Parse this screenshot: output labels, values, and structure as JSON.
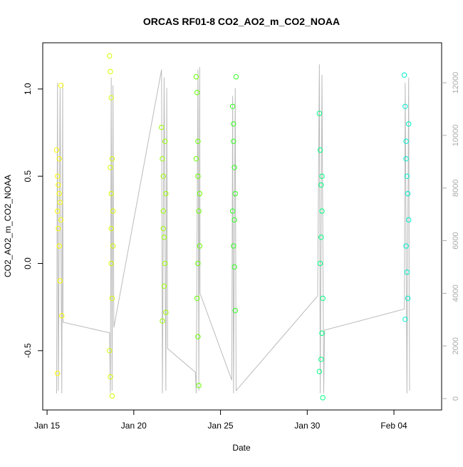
{
  "chart_data": {
    "type": "scatter",
    "title": "ORCAS RF01-8 CO2_AO2_m_CO2_NOAA",
    "x_label": "Date",
    "y_label": "CO2_AO2_m_CO2_NOAA",
    "xlim": [
      14.75,
      37.75
    ],
    "xticks": [
      {
        "value": 15,
        "label": "Jan 15"
      },
      {
        "value": 20,
        "label": "Jan 20"
      },
      {
        "value": 25,
        "label": "Jan 25"
      },
      {
        "value": 30,
        "label": "Jan 30"
      },
      {
        "value": 35,
        "label": "Feb 04"
      }
    ],
    "ylim": [
      -0.84,
      1.265
    ],
    "yticks": [
      -0.5,
      {
        "value": 0,
        "label": "0.0"
      },
      0.5,
      {
        "value": 1,
        "label": "1.0"
      }
    ],
    "y2lim": [
      -433,
      13520
    ],
    "y2ticks": [
      0,
      2000,
      4000,
      6000,
      8000,
      10000,
      12000
    ],
    "series": [
      {
        "color": "#ffff00",
        "x": [
          15.55,
          15.6,
          15.6,
          15.65,
          15.65,
          15.7,
          15.7,
          15.75,
          15.75,
          15.8,
          15.8,
          15.85,
          15.6,
          15.7
        ],
        "values": [
          0.65,
          0.5,
          0.3,
          0.2,
          0.45,
          0.1,
          0.6,
          0.35,
          -0.1,
          0.25,
          1.02,
          -0.3,
          -0.63,
          0.4
        ]
      },
      {
        "color": "#d4ff00",
        "x": [
          18.6,
          18.65,
          18.65,
          18.7,
          18.7,
          18.7,
          18.75,
          18.75,
          18.8,
          18.6,
          18.65,
          18.7,
          18.75,
          18.8
        ],
        "values": [
          1.19,
          1.1,
          0.55,
          0.4,
          0.2,
          0.0,
          -0.2,
          0.6,
          0.3,
          -0.5,
          -0.65,
          0.95,
          -0.76,
          0.1
        ]
      },
      {
        "color": "#99ff00",
        "x": [
          21.6,
          21.65,
          21.7,
          21.7,
          21.75,
          21.8,
          21.85,
          21.65,
          21.75,
          21.8,
          21.7,
          21.85
        ],
        "values": [
          0.78,
          0.6,
          0.5,
          0.3,
          0.15,
          0.0,
          0.4,
          -0.33,
          -0.13,
          0.7,
          0.2,
          -0.28
        ]
      },
      {
        "color": "#66ff00",
        "x": [
          23.6,
          23.65,
          23.7,
          23.7,
          23.75,
          23.8,
          23.65,
          23.7,
          23.75,
          23.6,
          23.7,
          23.8
        ],
        "values": [
          1.07,
          0.98,
          0.7,
          0.5,
          0.3,
          0.1,
          -0.2,
          -0.42,
          -0.7,
          0.6,
          0.0,
          0.4
        ]
      },
      {
        "color": "#33ff22",
        "x": [
          25.7,
          25.75,
          25.8,
          25.85,
          25.8,
          25.75,
          25.9,
          25.8,
          25.85,
          25.75,
          25.7
        ],
        "values": [
          0.9,
          0.7,
          0.55,
          0.4,
          0.25,
          0.1,
          1.07,
          -0.02,
          -0.27,
          0.8,
          0.3
        ]
      },
      {
        "color": "#00ff80",
        "x": [
          30.7,
          30.75,
          30.8,
          30.85,
          30.8,
          30.75,
          30.9,
          30.85,
          30.8,
          30.7,
          30.9,
          30.85
        ],
        "values": [
          0.86,
          0.65,
          0.45,
          0.3,
          0.15,
          0.0,
          -0.2,
          -0.4,
          -0.55,
          -0.62,
          -0.77,
          0.5
        ]
      },
      {
        "color": "#00eecc",
        "x": [
          35.6,
          35.65,
          35.7,
          35.75,
          35.8,
          35.85,
          35.7,
          35.75,
          35.8,
          35.65,
          35.7,
          35.85
        ],
        "values": [
          1.08,
          0.9,
          0.7,
          0.5,
          0.4,
          0.25,
          0.1,
          -0.05,
          -0.2,
          -0.32,
          0.6,
          0.8
        ]
      },
      {
        "type": "line",
        "axis": "y2",
        "color": "#bbbbbb",
        "x": [
          15.55,
          15.6,
          15.65,
          15.75,
          15.85,
          15.9,
          15.92,
          18.6,
          18.65,
          18.7,
          18.75,
          18.8,
          18.85,
          21.6,
          21.65,
          21.75,
          21.85,
          21.9,
          21.95,
          23.55,
          23.6,
          23.7,
          23.75,
          23.8,
          23.82,
          25.65,
          25.7,
          25.75,
          25.85,
          25.9,
          30.6,
          30.7,
          30.75,
          30.85,
          30.95,
          31.0,
          35.6,
          35.65,
          35.75,
          35.85,
          35.9
        ],
        "values": [
          200,
          12000,
          300,
          11800,
          200,
          12000,
          2900,
          2500,
          200,
          12200,
          300,
          11900,
          2700,
          12500,
          200,
          12200,
          300,
          11800,
          1900,
          1000,
          200,
          12500,
          300,
          12600,
          4000,
          700,
          11500,
          200,
          11800,
          300,
          3900,
          12700,
          200,
          12300,
          200,
          2600,
          3400,
          12000,
          200,
          12200,
          300
        ]
      }
    ]
  }
}
